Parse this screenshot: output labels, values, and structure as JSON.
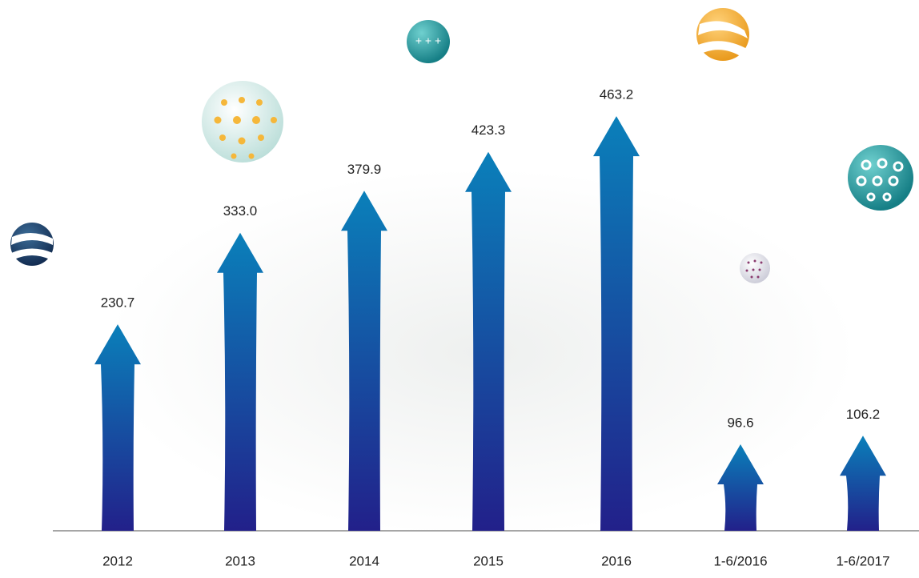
{
  "chart_data": {
    "type": "arrow-bar",
    "categories": [
      "2012",
      "2013",
      "2014",
      "2015",
      "2016",
      "1-6/2016",
      "1-6/2017"
    ],
    "values": [
      230.7,
      333.0,
      379.9,
      423.3,
      463.2,
      96.6,
      106.2
    ],
    "value_labels": [
      "230.7",
      "333.0",
      "379.9",
      "423.3",
      "463.2",
      "96.6",
      "106.2"
    ],
    "colors": [
      "#0a80ba",
      "#22208a"
    ]
  }
}
